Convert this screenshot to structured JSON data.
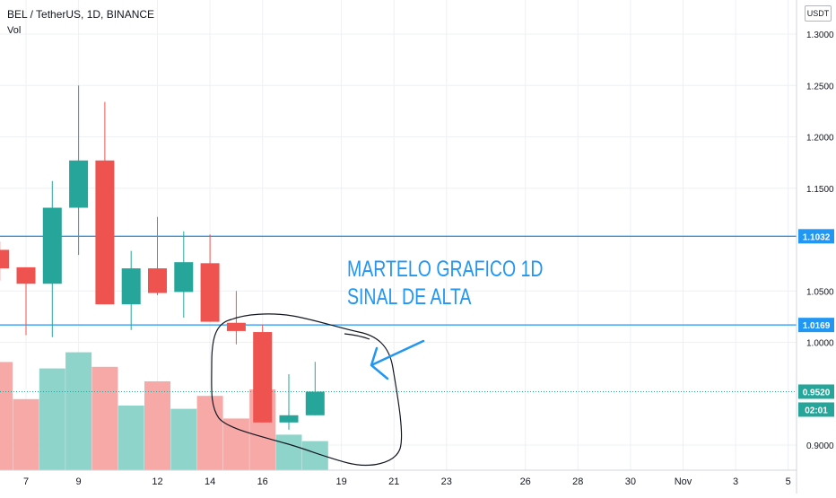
{
  "header": {
    "symbol_title": "BEL / TetherUS, 1D, BINANCE",
    "volume_label": "Vol",
    "currency_button": "USDT"
  },
  "annotation": {
    "line1": "MARTELO GRAFICO 1D",
    "line2": "SINAL DE ALTA"
  },
  "colors": {
    "up": "#26a69a",
    "down": "#ef5350",
    "vol_up": "#8ed4cb",
    "vol_down": "#f7a9a7",
    "grid": "#eef0f3",
    "axis_text": "#131722",
    "hline": "#2196f3",
    "annotation": "#2196f3",
    "price_badge": "#26a69a"
  },
  "chart_data": {
    "type": "candlestick",
    "x_ticks": [
      {
        "label": "7",
        "day": 7
      },
      {
        "label": "9",
        "day": 9
      },
      {
        "label": "12",
        "day": 12
      },
      {
        "label": "14",
        "day": 14
      },
      {
        "label": "16",
        "day": 16
      },
      {
        "label": "19",
        "day": 19
      },
      {
        "label": "21",
        "day": 21
      },
      {
        "label": "23",
        "day": 23
      },
      {
        "label": "26",
        "day": 26
      },
      {
        "label": "28",
        "day": 28
      },
      {
        "label": "30",
        "day": 30
      },
      {
        "label": "Nov",
        "day": 32
      },
      {
        "label": "3",
        "day": 34
      },
      {
        "label": "5",
        "day": 36
      }
    ],
    "y_ticks": [
      "1.3000",
      "1.2500",
      "1.2000",
      "1.1500",
      "1.0500",
      "1.0000",
      "0.9000"
    ],
    "y_range": [
      0.88,
      1.31
    ],
    "candles": [
      {
        "day": 6,
        "open": 1.09,
        "close": 1.072,
        "high": 1.098,
        "low": 1.06
      },
      {
        "day": 7,
        "open": 1.073,
        "close": 1.057,
        "high": 1.073,
        "low": 1.007
      },
      {
        "day": 8,
        "open": 1.057,
        "close": 1.131,
        "high": 1.157,
        "low": 1.005
      },
      {
        "day": 9,
        "open": 1.131,
        "close": 1.177,
        "high": 1.25,
        "low": 1.085
      },
      {
        "day": 10,
        "open": 1.177,
        "close": 1.037,
        "high": 1.234,
        "low": 1.037
      },
      {
        "day": 11,
        "open": 1.037,
        "close": 1.072,
        "high": 1.089,
        "low": 1.012
      },
      {
        "day": 12,
        "open": 1.072,
        "close": 1.048,
        "high": 1.122,
        "low": 1.046
      },
      {
        "day": 13,
        "open": 1.049,
        "close": 1.078,
        "high": 1.108,
        "low": 1.024
      },
      {
        "day": 14,
        "open": 1.077,
        "close": 1.02,
        "high": 1.105,
        "low": 1.02
      },
      {
        "day": 15,
        "open": 1.019,
        "close": 1.011,
        "high": 1.05,
        "low": 0.998
      },
      {
        "day": 16,
        "open": 1.01,
        "close": 0.922,
        "high": 1.017,
        "low": 0.922
      },
      {
        "day": 17,
        "open": 0.922,
        "close": 0.929,
        "high": 0.969,
        "low": 0.915
      },
      {
        "day": 18,
        "open": 0.929,
        "close": 0.952,
        "high": 0.981,
        "low": 0.929
      }
    ],
    "volume": [
      {
        "day": 6,
        "value": 0.67,
        "dir": "down"
      },
      {
        "day": 7,
        "value": 0.44,
        "dir": "down"
      },
      {
        "day": 8,
        "value": 0.63,
        "dir": "up"
      },
      {
        "day": 9,
        "value": 0.73,
        "dir": "up"
      },
      {
        "day": 10,
        "value": 0.64,
        "dir": "down"
      },
      {
        "day": 11,
        "value": 0.4,
        "dir": "up"
      },
      {
        "day": 12,
        "value": 0.55,
        "dir": "down"
      },
      {
        "day": 13,
        "value": 0.38,
        "dir": "up"
      },
      {
        "day": 14,
        "value": 0.46,
        "dir": "down"
      },
      {
        "day": 15,
        "value": 0.32,
        "dir": "down"
      },
      {
        "day": 16,
        "value": 0.5,
        "dir": "down"
      },
      {
        "day": 17,
        "value": 0.22,
        "dir": "up"
      },
      {
        "day": 18,
        "value": 0.18,
        "dir": "up"
      }
    ],
    "horizontal_lines": [
      {
        "price": 1.1032,
        "label": "1.1032"
      },
      {
        "price": 1.0169,
        "label": "1.0169"
      }
    ],
    "last_price": {
      "price": 0.952,
      "label": "0.9520",
      "countdown": "02:01"
    }
  }
}
